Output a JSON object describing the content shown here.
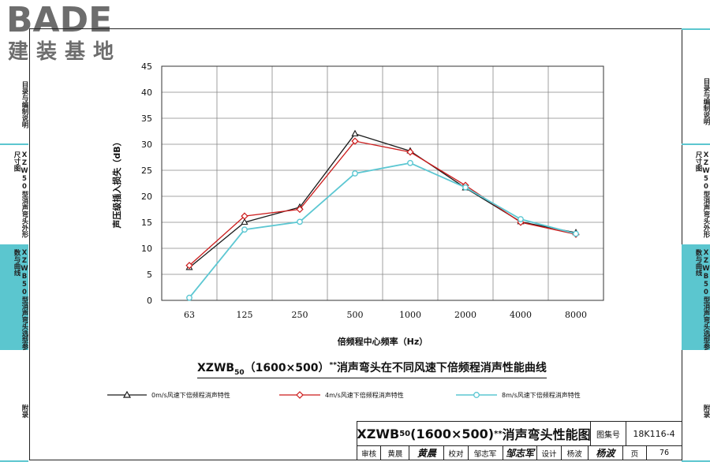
{
  "logo": {
    "main": "BADE",
    "sub": "建装基地"
  },
  "sidebar": {
    "left": [
      {
        "label": "目录与编制说明",
        "active": false
      },
      {
        "label": "XZW50型消声弯头外形尺寸图",
        "active": false
      },
      {
        "label": "XZWB50型消声弯头选型参数与曲线",
        "active": true
      },
      {
        "label": "附录",
        "active": false
      }
    ],
    "right": [
      {
        "label": "目录与编制说明",
        "active": false
      },
      {
        "label": "XZW50型消声弯头外形尺寸图",
        "active": false
      },
      {
        "label": "XZWB50型消声弯头选型参数与曲线",
        "active": true
      },
      {
        "label": "附录",
        "active": false
      }
    ]
  },
  "chart_data": {
    "type": "line",
    "ylabel": "声压级插入损失（dB）",
    "xlabel": "倍频程中心频率（Hz）",
    "categories": [
      "63",
      "125",
      "250",
      "500",
      "1000",
      "2000",
      "4000",
      "8000"
    ],
    "ylim": [
      0,
      45
    ],
    "yticks": [
      "0",
      "5",
      "10",
      "15",
      "20",
      "25",
      "30",
      "35",
      "40",
      "45"
    ],
    "grid": true,
    "series": [
      {
        "name": "0m/s风速下倍频程消声特性",
        "marker": "triangle",
        "color": "#1a1a1a",
        "values": [
          6.3,
          15.0,
          17.9,
          32.0,
          28.7,
          21.6,
          15.1,
          13.0
        ]
      },
      {
        "name": "4m/s风速下倍频程消声特性",
        "marker": "diamond",
        "color": "#cc1b1b",
        "values": [
          6.7,
          16.2,
          17.5,
          30.6,
          28.5,
          22.1,
          15.0,
          12.7
        ]
      },
      {
        "name": "8m/s风速下倍频程消声特性",
        "marker": "circle",
        "color": "#5cc7d2",
        "values": [
          0.5,
          13.6,
          15.1,
          24.4,
          26.4,
          21.7,
          15.6,
          12.8
        ]
      }
    ],
    "legend_position": "bottom"
  },
  "caption": {
    "prefix": "XZWB",
    "sub": "50",
    "mid": "（1600×500）",
    "sup": "**",
    "suffix": "消声弯头在不同风速下倍频程消声性能曲线"
  },
  "title_block": {
    "title_prefix": "XZWB",
    "title_sub": "50",
    "title_mid": "(1600×500)",
    "title_sup": "**",
    "title_suffix": "消声弯头性能图",
    "atlas_label": "图集号",
    "atlas_no": "18K116-4",
    "review_label": "审核",
    "reviewer": "黄晨",
    "reviewer_sig": "黄晨",
    "check_label": "校对",
    "checker": "邹志军",
    "checker_sig": "邹志军",
    "design_label": "设计",
    "designer": "杨波",
    "designer_sig": "杨波",
    "page_label": "页",
    "page_no": "76"
  }
}
